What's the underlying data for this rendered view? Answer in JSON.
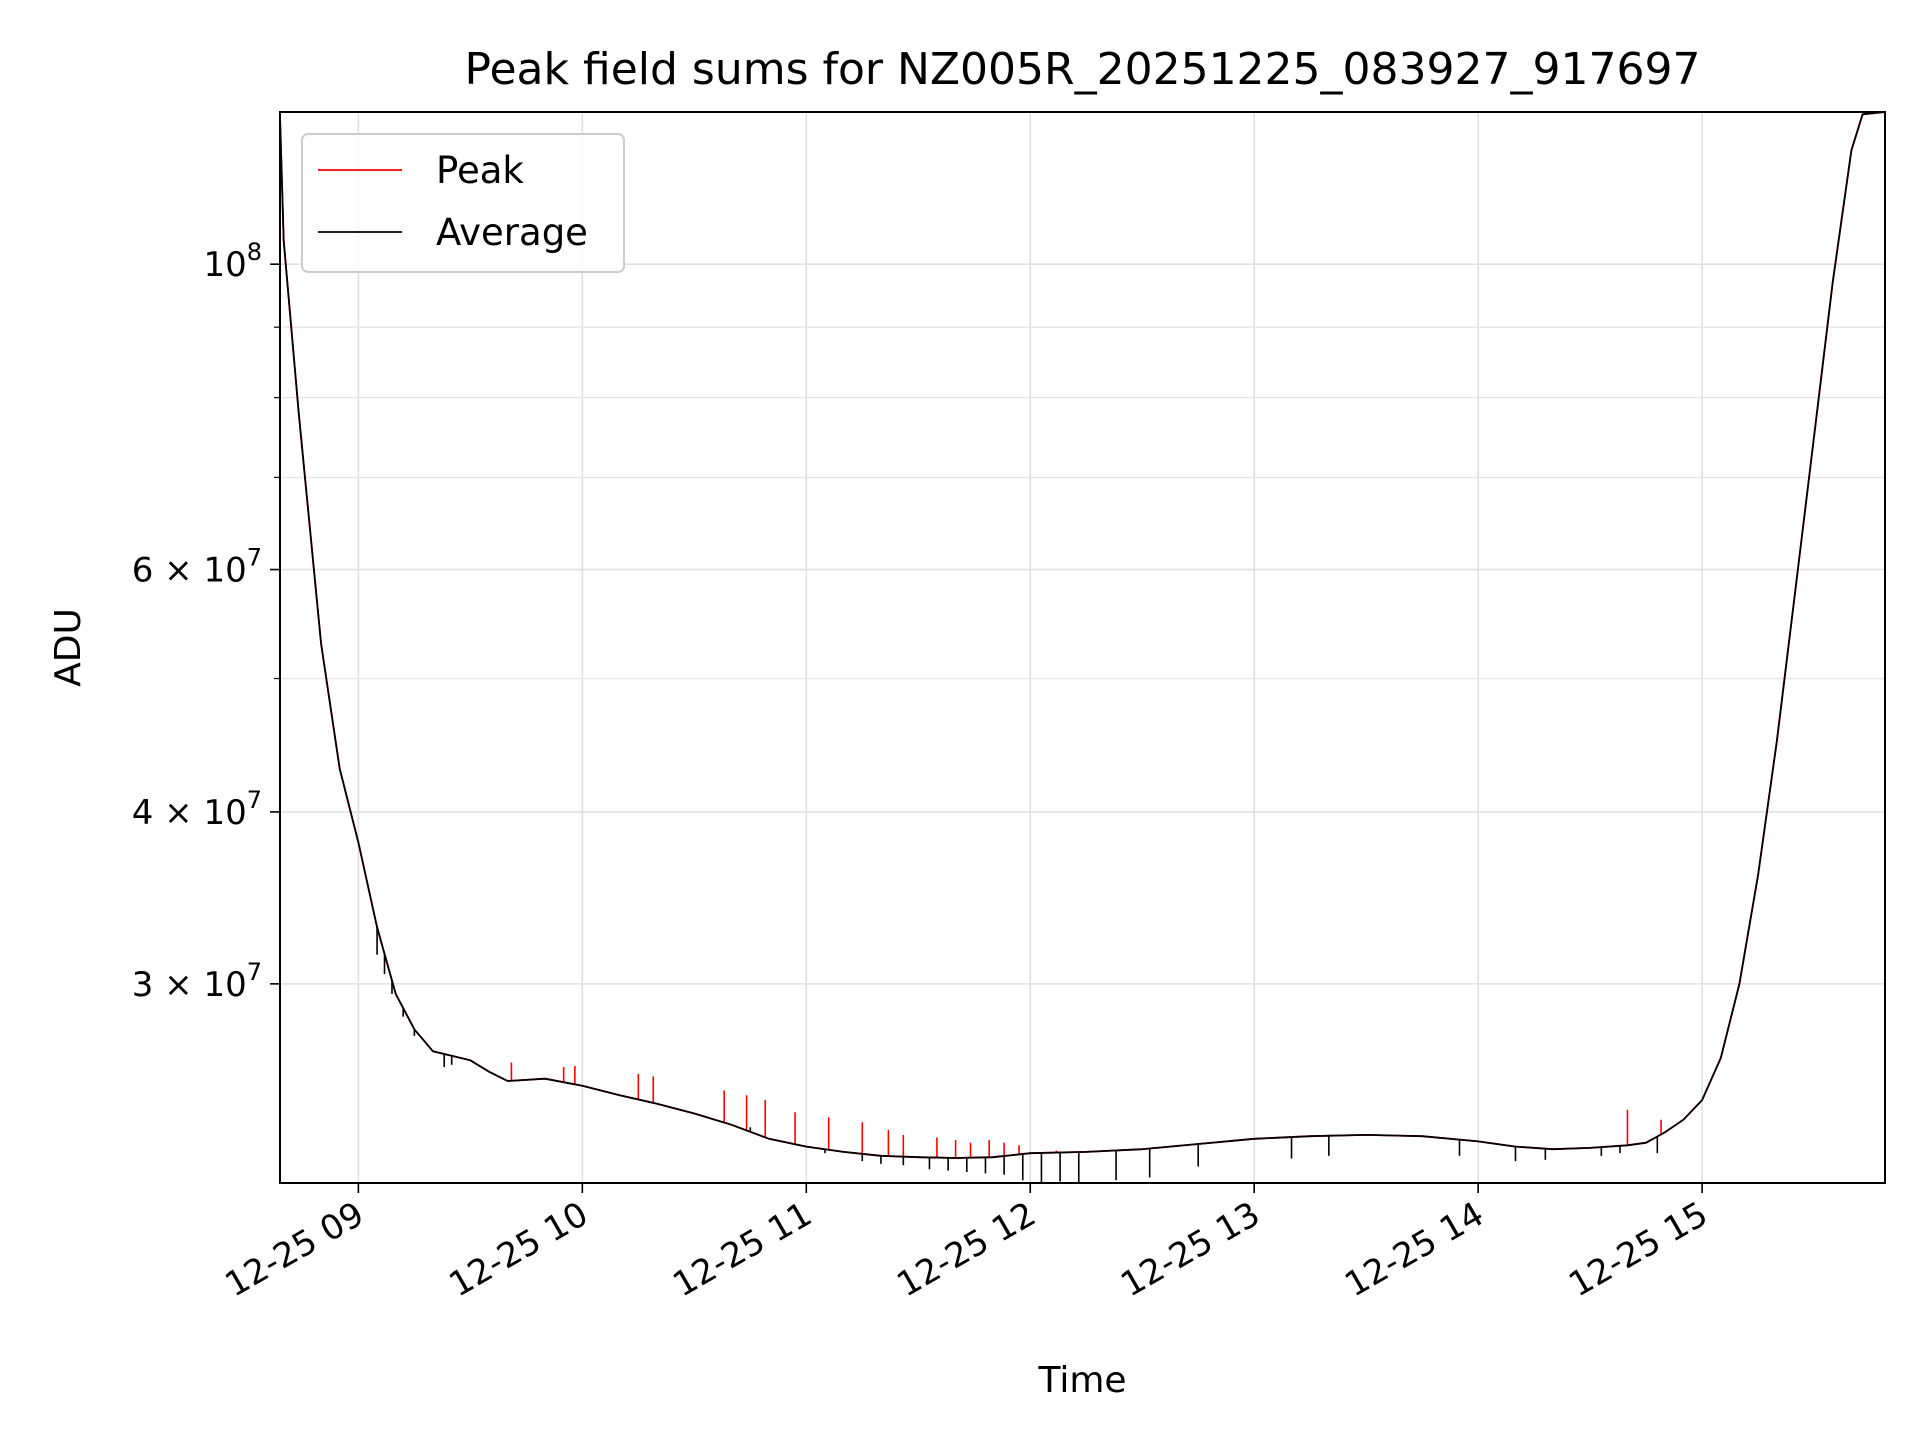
{
  "chart_data": {
    "type": "line",
    "title": "Peak field sums for NZ005R_20251225_083927_917697",
    "xlabel": "Time",
    "ylabel": "ADU",
    "yscale": "log",
    "xlim": [
      "12-25 08:39",
      "12-25 15:49"
    ],
    "ylim": [
      21500000,
      129000000
    ],
    "grid": true,
    "legend": {
      "placement": "top-left",
      "entries": [
        "Peak",
        "Average"
      ]
    },
    "x_ticks": [
      {
        "value": "12-25 09:00",
        "label": "12-25 09"
      },
      {
        "value": "12-25 10:00",
        "label": "12-25 10"
      },
      {
        "value": "12-25 11:00",
        "label": "12-25 11"
      },
      {
        "value": "12-25 12:00",
        "label": "12-25 12"
      },
      {
        "value": "12-25 13:00",
        "label": "12-25 13"
      },
      {
        "value": "12-25 14:00",
        "label": "12-25 14"
      },
      {
        "value": "12-25 15:00",
        "label": "12-25 15"
      }
    ],
    "y_ticks_major": [
      {
        "value": 100000000,
        "base": "10",
        "exp": "8"
      },
      {
        "value": 60000000,
        "base": "6 × 10",
        "exp": "7"
      },
      {
        "value": 40000000,
        "base": "4 × 10",
        "exp": "7"
      },
      {
        "value": 30000000,
        "base": "3 × 10",
        "exp": "7"
      }
    ],
    "y_ticks_minor": [
      90000000,
      80000000,
      70000000,
      50000000
    ],
    "series": [
      {
        "name": "Peak",
        "color": "#ff0000",
        "points": [
          [
            "12-25 08:39",
            128000000
          ],
          [
            "12-25 08:40",
            104000000
          ],
          [
            "12-25 08:44",
            78000000
          ],
          [
            "12-25 08:50",
            53000000
          ],
          [
            "12-25 08:55",
            43000000
          ],
          [
            "12-25 09:00",
            38000000
          ],
          [
            "12-25 09:05",
            33000000
          ],
          [
            "12-25 09:10",
            29500000
          ],
          [
            "12-25 09:15",
            27800000
          ],
          [
            "12-25 09:20",
            26800000
          ],
          [
            "12-25 09:30",
            26400000
          ],
          [
            "12-25 09:35",
            25900000
          ],
          [
            "12-25 09:40",
            25500000
          ],
          [
            "12-25 09:50",
            25600000
          ],
          [
            "12-25 10:00",
            25300000
          ],
          [
            "12-25 10:10",
            24900000
          ],
          [
            "12-25 10:20",
            24550000
          ],
          [
            "12-25 10:30",
            24150000
          ],
          [
            "12-25 10:40",
            23700000
          ],
          [
            "12-25 10:50",
            23150000
          ],
          [
            "12-25 11:00",
            22850000
          ],
          [
            "12-25 11:10",
            22650000
          ],
          [
            "12-25 11:20",
            22500000
          ],
          [
            "12-25 11:30",
            22450000
          ],
          [
            "12-25 11:40",
            22420000
          ],
          [
            "12-25 11:50",
            22450000
          ],
          [
            "12-25 12:00",
            22600000
          ],
          [
            "12-25 12:15",
            22650000
          ],
          [
            "12-25 12:30",
            22750000
          ],
          [
            "12-25 12:45",
            22950000
          ],
          [
            "12-25 13:00",
            23150000
          ],
          [
            "12-25 13:15",
            23250000
          ],
          [
            "12-25 13:30",
            23300000
          ],
          [
            "12-25 13:45",
            23250000
          ],
          [
            "12-25 14:00",
            23050000
          ],
          [
            "12-25 14:10",
            22850000
          ],
          [
            "12-25 14:20",
            22750000
          ],
          [
            "12-25 14:30",
            22800000
          ],
          [
            "12-25 14:40",
            22900000
          ],
          [
            "12-25 14:45",
            23000000
          ],
          [
            "12-25 14:50",
            23400000
          ],
          [
            "12-25 14:55",
            23900000
          ],
          [
            "12-25 15:00",
            24700000
          ],
          [
            "12-25 15:05",
            26500000
          ],
          [
            "12-25 15:10",
            30000000
          ],
          [
            "12-25 15:15",
            36000000
          ],
          [
            "12-25 15:20",
            45000000
          ],
          [
            "12-25 15:25",
            58000000
          ],
          [
            "12-25 15:30",
            75000000
          ],
          [
            "12-25 15:35",
            97000000
          ],
          [
            "12-25 15:40",
            121000000
          ],
          [
            "12-25 15:43",
            128500000
          ],
          [
            "12-25 15:49",
            129000000
          ]
        ],
        "spikes": [
          [
            "12-25 09:41",
            26300000
          ],
          [
            "12-25 09:55",
            26100000
          ],
          [
            "12-25 09:58",
            26150000
          ],
          [
            "12-25 10:15",
            25800000
          ],
          [
            "12-25 10:19",
            25700000
          ],
          [
            "12-25 10:38",
            25100000
          ],
          [
            "12-25 10:44",
            24900000
          ],
          [
            "12-25 10:49",
            24700000
          ],
          [
            "12-25 10:57",
            24200000
          ],
          [
            "12-25 11:06",
            24000000
          ],
          [
            "12-25 11:15",
            23800000
          ],
          [
            "12-25 11:22",
            23500000
          ],
          [
            "12-25 11:26",
            23300000
          ],
          [
            "12-25 11:35",
            23200000
          ],
          [
            "12-25 11:40",
            23100000
          ],
          [
            "12-25 11:44",
            23000000
          ],
          [
            "12-25 11:49",
            23100000
          ],
          [
            "12-25 11:53",
            23000000
          ],
          [
            "12-25 11:57",
            22900000
          ],
          [
            "12-25 12:07",
            22700000
          ],
          [
            "12-25 14:40",
            24300000
          ],
          [
            "12-25 14:49",
            23900000
          ]
        ]
      },
      {
        "name": "Average",
        "color": "#000000",
        "points": [
          [
            "12-25 08:39",
            128000000
          ],
          [
            "12-25 08:40",
            104000000
          ],
          [
            "12-25 08:44",
            78000000
          ],
          [
            "12-25 08:50",
            53000000
          ],
          [
            "12-25 08:55",
            43000000
          ],
          [
            "12-25 09:00",
            38000000
          ],
          [
            "12-25 09:05",
            33000000
          ],
          [
            "12-25 09:10",
            29500000
          ],
          [
            "12-25 09:15",
            27800000
          ],
          [
            "12-25 09:20",
            26800000
          ],
          [
            "12-25 09:30",
            26400000
          ],
          [
            "12-25 09:35",
            25900000
          ],
          [
            "12-25 09:40",
            25500000
          ],
          [
            "12-25 09:50",
            25600000
          ],
          [
            "12-25 10:00",
            25300000
          ],
          [
            "12-25 10:10",
            24900000
          ],
          [
            "12-25 10:20",
            24550000
          ],
          [
            "12-25 10:30",
            24150000
          ],
          [
            "12-25 10:40",
            23700000
          ],
          [
            "12-25 10:50",
            23150000
          ],
          [
            "12-25 11:00",
            22850000
          ],
          [
            "12-25 11:10",
            22650000
          ],
          [
            "12-25 11:20",
            22500000
          ],
          [
            "12-25 11:30",
            22450000
          ],
          [
            "12-25 11:40",
            22420000
          ],
          [
            "12-25 11:50",
            22450000
          ],
          [
            "12-25 12:00",
            22600000
          ],
          [
            "12-25 12:15",
            22650000
          ],
          [
            "12-25 12:30",
            22750000
          ],
          [
            "12-25 12:45",
            22950000
          ],
          [
            "12-25 13:00",
            23150000
          ],
          [
            "12-25 13:15",
            23250000
          ],
          [
            "12-25 13:30",
            23300000
          ],
          [
            "12-25 13:45",
            23250000
          ],
          [
            "12-25 14:00",
            23050000
          ],
          [
            "12-25 14:10",
            22850000
          ],
          [
            "12-25 14:20",
            22750000
          ],
          [
            "12-25 14:30",
            22800000
          ],
          [
            "12-25 14:40",
            22900000
          ],
          [
            "12-25 14:45",
            23000000
          ],
          [
            "12-25 14:50",
            23400000
          ],
          [
            "12-25 14:55",
            23900000
          ],
          [
            "12-25 15:00",
            24700000
          ],
          [
            "12-25 15:05",
            26500000
          ],
          [
            "12-25 15:10",
            30000000
          ],
          [
            "12-25 15:15",
            36000000
          ],
          [
            "12-25 15:20",
            45000000
          ],
          [
            "12-25 15:25",
            58000000
          ],
          [
            "12-25 15:30",
            75000000
          ],
          [
            "12-25 15:35",
            97000000
          ],
          [
            "12-25 15:40",
            121000000
          ],
          [
            "12-25 15:43",
            128500000
          ],
          [
            "12-25 15:49",
            129000000
          ]
        ],
        "dips": [
          [
            "12-25 09:05",
            31500000
          ],
          [
            "12-25 09:07",
            30500000
          ],
          [
            "12-25 09:09",
            29500000
          ],
          [
            "12-25 09:12",
            28400000
          ],
          [
            "12-25 09:15",
            27500000
          ],
          [
            "12-25 09:23",
            26100000
          ],
          [
            "12-25 09:25",
            26200000
          ],
          [
            "12-25 10:38",
            23800000
          ],
          [
            "12-25 10:45",
            23600000
          ],
          [
            "12-25 11:05",
            22600000
          ],
          [
            "12-25 11:15",
            22300000
          ],
          [
            "12-25 11:20",
            22200000
          ],
          [
            "12-25 11:26",
            22150000
          ],
          [
            "12-25 11:33",
            22000000
          ],
          [
            "12-25 11:38",
            21950000
          ],
          [
            "12-25 11:43",
            21900000
          ],
          [
            "12-25 11:48",
            21850000
          ],
          [
            "12-25 11:53",
            21800000
          ],
          [
            "12-25 11:58",
            21600000
          ],
          [
            "12-25 12:03",
            21500000
          ],
          [
            "12-25 12:08",
            21550000
          ],
          [
            "12-25 12:13",
            21500000
          ],
          [
            "12-25 12:23",
            21600000
          ],
          [
            "12-25 12:32",
            21700000
          ],
          [
            "12-25 12:45",
            22100000
          ],
          [
            "12-25 13:10",
            22400000
          ],
          [
            "12-25 13:20",
            22500000
          ],
          [
            "12-25 13:55",
            22500000
          ],
          [
            "12-25 14:10",
            22300000
          ],
          [
            "12-25 14:18",
            22350000
          ],
          [
            "12-25 14:33",
            22500000
          ],
          [
            "12-25 14:38",
            22600000
          ],
          [
            "12-25 14:48",
            22600000
          ]
        ]
      }
    ]
  }
}
